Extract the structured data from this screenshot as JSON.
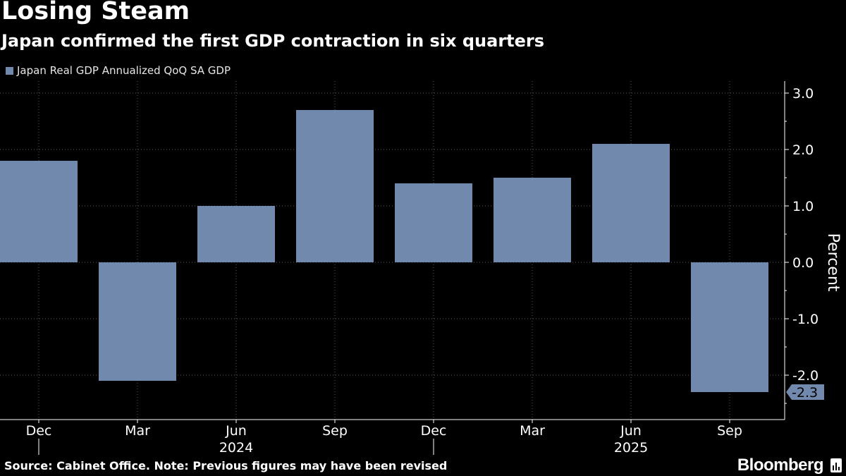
{
  "header": {
    "title": "Losing Steam",
    "subtitle": "Japan confirmed the first GDP contraction in six quarters"
  },
  "footer": {
    "source": "Source: Cabinet Office. Note: Previous figures may have been revised",
    "brand": "Bloomberg"
  },
  "colors": {
    "bar": "#7189ad",
    "background": "#000000",
    "grid": "#5a5a5a",
    "text": "#ffffff"
  },
  "chart_data": {
    "type": "bar",
    "title": "Losing Steam",
    "subtitle": "Japan confirmed the first GDP contraction in six quarters",
    "series": [
      {
        "name": "Japan Real GDP Annualized QoQ SA GDP",
        "values": [
          1.8,
          -2.1,
          1.0,
          2.7,
          1.4,
          1.5,
          2.1,
          -2.3
        ]
      }
    ],
    "categories": [
      "Dec",
      "Mar",
      "Jun",
      "Sep",
      "Dec",
      "Mar",
      "Jun",
      "Sep"
    ],
    "year_labels": [
      {
        "label": "2024",
        "category_index": 2
      },
      {
        "label": "2025",
        "category_index": 6
      }
    ],
    "year_dividers": [
      0,
      4
    ],
    "ylabel": "Percent",
    "ylim": [
      -2.5,
      3.0
    ],
    "yticks": [
      3.0,
      2.0,
      1.0,
      0.0,
      -1.0,
      -2.0
    ],
    "ytick_labels": [
      "3.0",
      "2.0",
      "1.0",
      "0.0",
      "-1.0",
      "-2.0"
    ],
    "last_value_label": "-2.3",
    "grid": true,
    "legend_position": "top-left"
  }
}
